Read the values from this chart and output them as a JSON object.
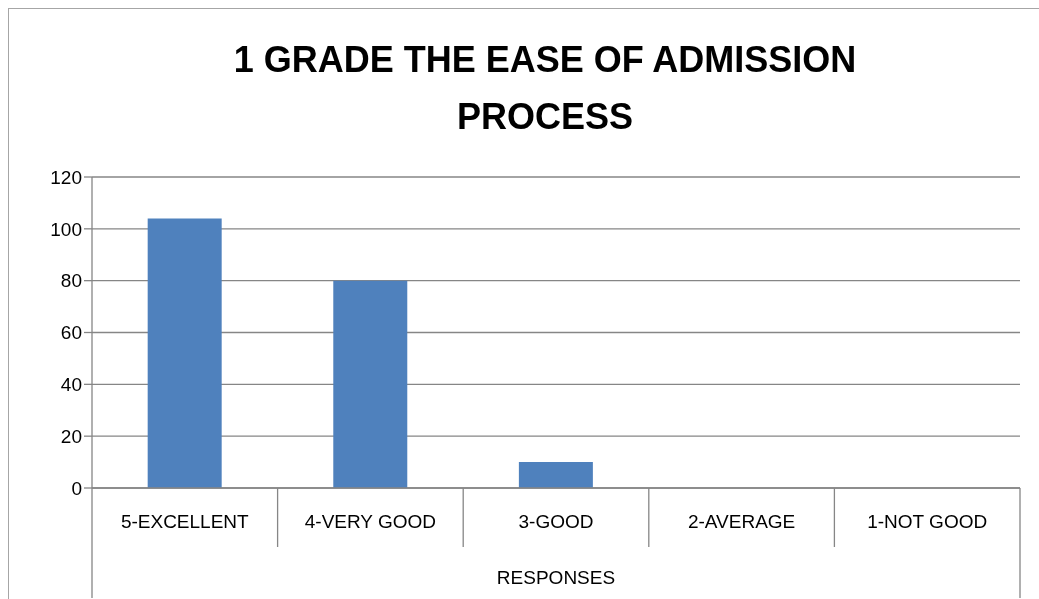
{
  "chart_data": {
    "type": "bar",
    "title": "1 GRADE THE EASE OF ADMISSION PROCESS",
    "xlabel": "RESPONSES",
    "categories": [
      "5-EXCELLENT",
      "4-VERY GOOD",
      "3-GOOD",
      "2-AVERAGE",
      "1-NOT GOOD"
    ],
    "values": [
      104,
      80,
      10,
      0,
      0
    ],
    "color": "#4f81bd",
    "ylim": [
      0,
      120
    ],
    "yticks": [
      0,
      20,
      40,
      60,
      80,
      100,
      120
    ],
    "grid": "y"
  }
}
